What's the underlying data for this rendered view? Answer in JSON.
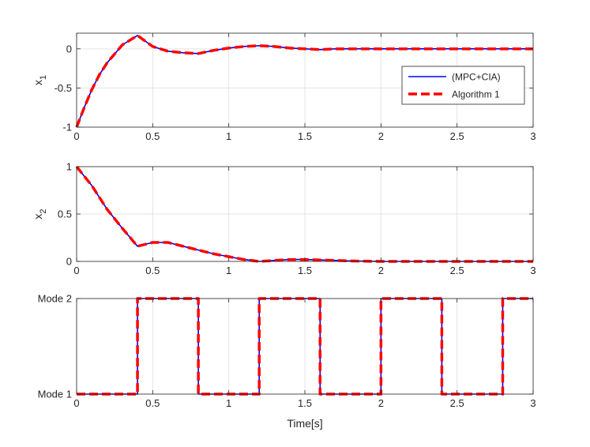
{
  "chart_data": [
    {
      "type": "line",
      "ylabel": "x",
      "ylabel_sub": "1",
      "xlim": [
        0,
        3
      ],
      "ylim": [
        -1,
        0.2
      ],
      "xticks": [
        0,
        0.5,
        1,
        1.5,
        2,
        2.5,
        3
      ],
      "xtick_labels": [
        "0",
        "0.5",
        "1",
        "1.5",
        "2",
        "2.5",
        "3"
      ],
      "yticks": [
        -1,
        -0.5,
        0
      ],
      "ytick_labels": [
        "-1",
        "-0.5",
        "0"
      ],
      "grid": true,
      "legend": {
        "placement": "right-middle",
        "entries": [
          "(MPC+CIA)",
          "Algorithm 1"
        ]
      },
      "series": [
        {
          "name": "(MPC+CIA)",
          "color": "#0000ff",
          "style": "solid",
          "x": [
            0,
            0.05,
            0.1,
            0.15,
            0.2,
            0.3,
            0.4,
            0.5,
            0.6,
            0.7,
            0.8,
            0.9,
            1.0,
            1.1,
            1.2,
            1.3,
            1.4,
            1.5,
            1.6,
            1.7,
            1.8,
            2.0,
            2.5,
            3.0
          ],
          "y": [
            -1.0,
            -0.75,
            -0.52,
            -0.33,
            -0.18,
            0.05,
            0.17,
            0.03,
            -0.03,
            -0.05,
            -0.06,
            -0.02,
            0.01,
            0.03,
            0.04,
            0.03,
            0.01,
            0.0,
            -0.01,
            0.0,
            0.0,
            0.0,
            0.0,
            0.0
          ]
        },
        {
          "name": "Algorithm 1",
          "color": "#ff0000",
          "style": "dashed",
          "x": [
            0,
            0.05,
            0.1,
            0.15,
            0.2,
            0.3,
            0.4,
            0.5,
            0.6,
            0.7,
            0.8,
            0.9,
            1.0,
            1.1,
            1.2,
            1.3,
            1.4,
            1.5,
            1.6,
            1.7,
            1.8,
            2.0,
            2.5,
            3.0
          ],
          "y": [
            -1.0,
            -0.75,
            -0.52,
            -0.33,
            -0.18,
            0.05,
            0.17,
            0.03,
            -0.03,
            -0.05,
            -0.06,
            -0.02,
            0.01,
            0.03,
            0.04,
            0.03,
            0.01,
            0.0,
            -0.01,
            0.0,
            0.0,
            0.0,
            0.0,
            0.0
          ]
        }
      ]
    },
    {
      "type": "line",
      "ylabel": "x",
      "ylabel_sub": "2",
      "xlim": [
        0,
        3
      ],
      "ylim": [
        0,
        1
      ],
      "xticks": [
        0,
        0.5,
        1,
        1.5,
        2,
        2.5,
        3
      ],
      "xtick_labels": [
        "0",
        "0.5",
        "1",
        "1.5",
        "2",
        "2.5",
        "3"
      ],
      "yticks": [
        0,
        0.5,
        1
      ],
      "ytick_labels": [
        "0",
        "0.5",
        "1"
      ],
      "grid": true,
      "series": [
        {
          "name": "(MPC+CIA)",
          "color": "#0000ff",
          "style": "solid",
          "x": [
            0,
            0.1,
            0.2,
            0.3,
            0.4,
            0.5,
            0.6,
            0.7,
            0.8,
            0.9,
            1.0,
            1.1,
            1.2,
            1.3,
            1.4,
            1.5,
            1.6,
            1.8,
            2.0,
            2.5,
            3.0
          ],
          "y": [
            1.0,
            0.8,
            0.55,
            0.35,
            0.16,
            0.2,
            0.2,
            0.16,
            0.12,
            0.08,
            0.05,
            0.02,
            0.0,
            0.01,
            0.02,
            0.02,
            0.015,
            0.005,
            0.0,
            0.0,
            0.0
          ]
        },
        {
          "name": "Algorithm 1",
          "color": "#ff0000",
          "style": "dashed",
          "x": [
            0,
            0.1,
            0.2,
            0.3,
            0.4,
            0.5,
            0.6,
            0.7,
            0.8,
            0.9,
            1.0,
            1.1,
            1.2,
            1.3,
            1.4,
            1.5,
            1.6,
            1.8,
            2.0,
            2.5,
            3.0
          ],
          "y": [
            1.0,
            0.8,
            0.55,
            0.35,
            0.16,
            0.2,
            0.2,
            0.16,
            0.12,
            0.08,
            0.05,
            0.02,
            0.0,
            0.01,
            0.02,
            0.02,
            0.015,
            0.005,
            0.0,
            0.0,
            0.0
          ]
        }
      ]
    },
    {
      "type": "line",
      "xlabel": "Time[s]",
      "xlim": [
        0,
        3
      ],
      "ylim": [
        1,
        2
      ],
      "xticks": [
        0,
        0.5,
        1,
        1.5,
        2,
        2.5,
        3
      ],
      "xtick_labels": [
        "0",
        "0.5",
        "1",
        "1.5",
        "2",
        "2.5",
        "3"
      ],
      "yticks": [
        1,
        2
      ],
      "ytick_labels": [
        "Mode 1",
        "Mode 2"
      ],
      "grid": true,
      "series": [
        {
          "name": "(MPC+CIA)",
          "color": "#0000ff",
          "style": "solid",
          "x": [
            0,
            0.4,
            0.4,
            0.8,
            0.8,
            1.2,
            1.2,
            1.6,
            1.6,
            2.0,
            2.0,
            2.4,
            2.4,
            2.8,
            2.8,
            3.0
          ],
          "y": [
            1,
            1,
            2,
            2,
            1,
            1,
            2,
            2,
            1,
            1,
            2,
            2,
            1,
            1,
            2,
            2
          ]
        },
        {
          "name": "Algorithm 1",
          "color": "#ff0000",
          "style": "dashed",
          "x": [
            0,
            0.4,
            0.4,
            0.8,
            0.8,
            1.2,
            1.2,
            1.6,
            1.6,
            2.0,
            2.0,
            2.4,
            2.4,
            2.8,
            2.8,
            3.0
          ],
          "y": [
            1,
            1,
            2,
            2,
            1,
            1,
            2,
            2,
            1,
            1,
            2,
            2,
            1,
            1,
            2,
            2
          ]
        }
      ]
    }
  ]
}
